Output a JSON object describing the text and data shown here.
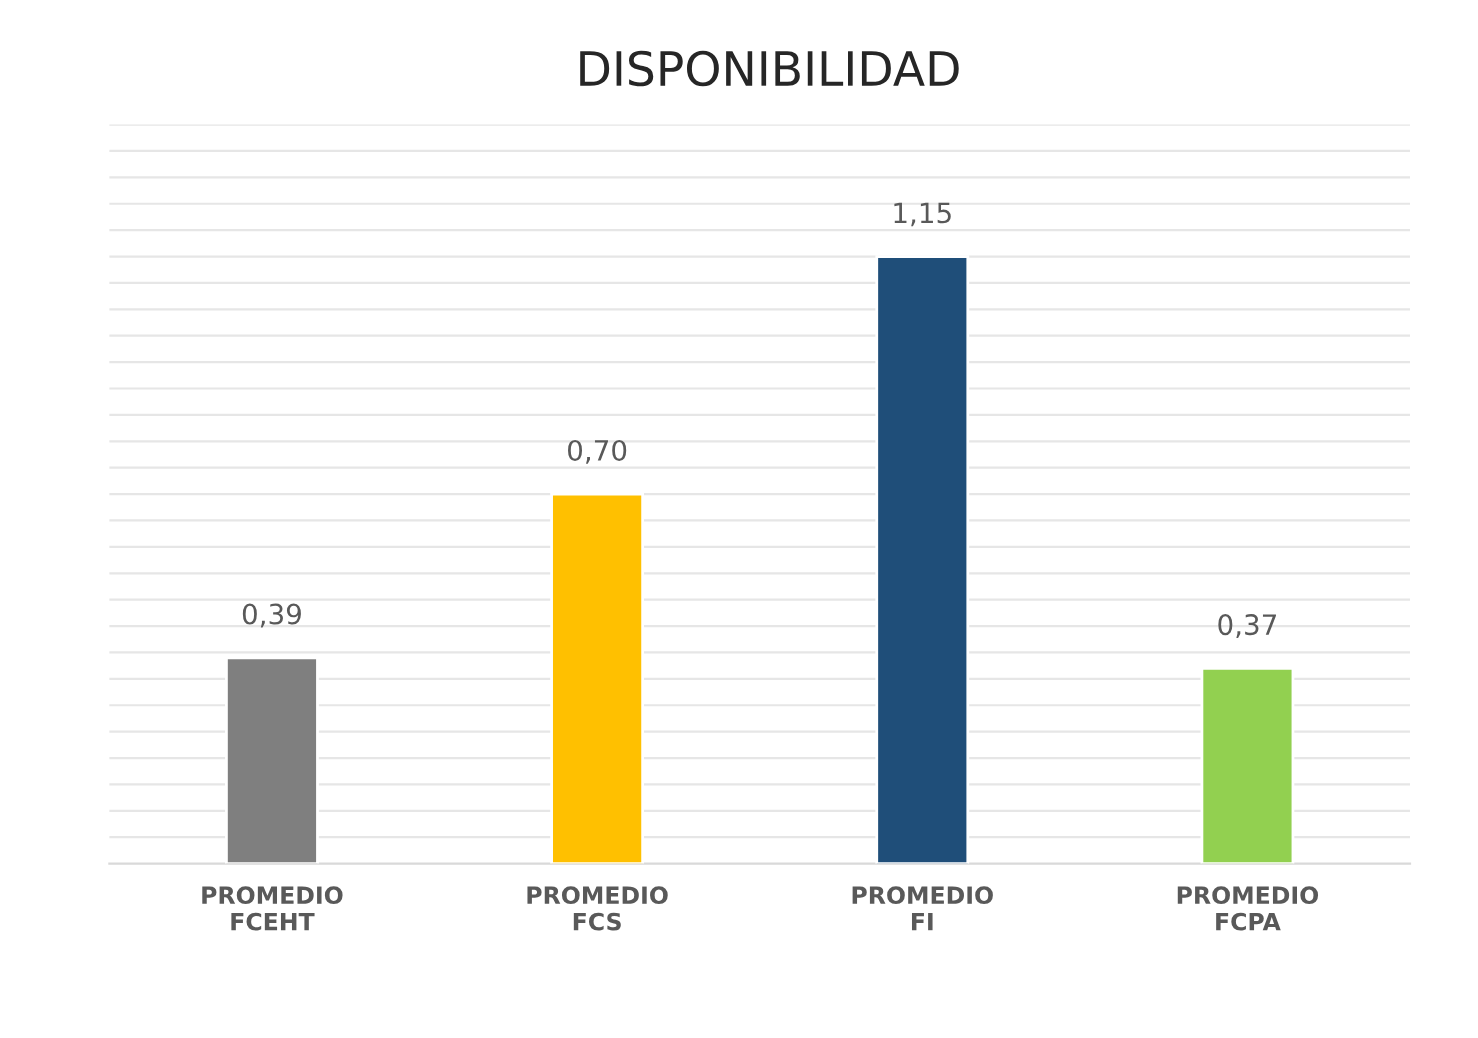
{
  "chart_data": {
    "type": "bar",
    "title": "DISPONIBILIDAD",
    "categories": [
      "PROMEDIO\nFCEHT",
      "PROMEDIO\nFCS",
      "PROMEDIO\nFI",
      "PROMEDIO\nFCPA"
    ],
    "values": [
      0.39,
      0.7,
      1.15,
      0.37
    ],
    "colors": [
      "#7f7f7f",
      "#ffc000",
      "#1f4e79",
      "#92d050"
    ],
    "value_labels": [
      "0,39",
      "0,70",
      "1,15",
      "0,37"
    ],
    "ylim": [
      0,
      1.4
    ],
    "yticks": [
      {
        "value": 0.05,
        "label": null
      },
      {
        "value": 0.1,
        "label": null
      },
      {
        "value": 0.15,
        "label": null
      },
      {
        "value": 0.2,
        "label": null
      },
      {
        "value": 0.25,
        "label": null
      },
      {
        "value": 0.3,
        "label": null
      },
      {
        "value": 0.35,
        "label": null
      },
      {
        "value": 0.4,
        "label": null
      },
      {
        "value": 0.45,
        "label": null
      },
      {
        "value": 0.5,
        "label": null
      },
      {
        "value": 0.55,
        "label": null
      },
      {
        "value": 0.6,
        "label": null
      },
      {
        "value": 0.65,
        "label": null
      },
      {
        "value": 0.7,
        "label": null
      },
      {
        "value": 0.75,
        "label": null
      },
      {
        "value": 0.8,
        "label": null
      },
      {
        "value": 0.85,
        "label": null
      },
      {
        "value": 0.9,
        "label": null
      },
      {
        "value": 0.95,
        "label": null
      },
      {
        "value": 1.0,
        "label": null
      },
      {
        "value": 1.05,
        "label": null
      },
      {
        "value": 1.1,
        "label": null
      },
      {
        "value": 1.15,
        "label": null
      },
      {
        "value": 1.2,
        "label": null
      },
      {
        "value": 1.25,
        "label": null
      },
      {
        "value": 1.3,
        "label": null
      },
      {
        "value": 1.35,
        "label": null
      },
      {
        "value": 1.4,
        "label": null
      }
    ],
    "tick_labels": "x",
    "grid": "y",
    "legend": false
  }
}
